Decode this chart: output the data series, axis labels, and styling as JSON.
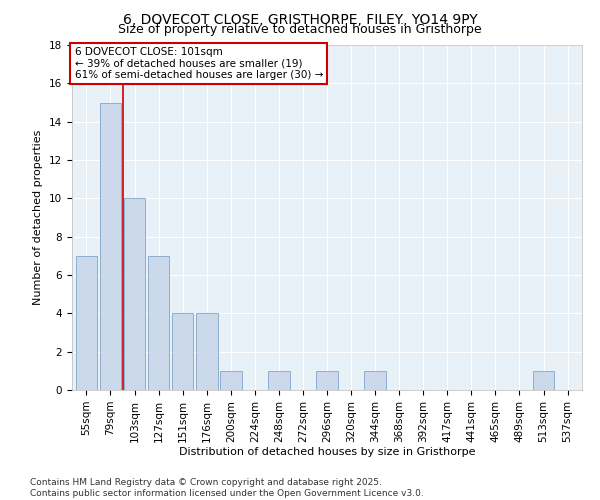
{
  "title": "6, DOVECOT CLOSE, GRISTHORPE, FILEY, YO14 9PY",
  "subtitle": "Size of property relative to detached houses in Gristhorpe",
  "xlabel": "Distribution of detached houses by size in Gristhorpe",
  "ylabel": "Number of detached properties",
  "bar_labels": [
    "55sqm",
    "79sqm",
    "103sqm",
    "127sqm",
    "151sqm",
    "176sqm",
    "200sqm",
    "224sqm",
    "248sqm",
    "272sqm",
    "296sqm",
    "320sqm",
    "344sqm",
    "368sqm",
    "392sqm",
    "417sqm",
    "441sqm",
    "465sqm",
    "489sqm",
    "513sqm",
    "537sqm"
  ],
  "bar_values": [
    7,
    15,
    10,
    7,
    4,
    4,
    1,
    0,
    1,
    0,
    1,
    0,
    1,
    0,
    0,
    0,
    0,
    0,
    0,
    1,
    0
  ],
  "bar_color": "#ccd9ea",
  "bar_edge_color": "#7098c0",
  "vline_color": "#cc0000",
  "annotation_text": "6 DOVECOT CLOSE: 101sqm\n← 39% of detached houses are smaller (19)\n61% of semi-detached houses are larger (30) →",
  "annotation_box_color": "#cc0000",
  "background_color": "#ffffff",
  "plot_bg_color": "#e8f0f8",
  "ylim": [
    0,
    18
  ],
  "yticks": [
    0,
    2,
    4,
    6,
    8,
    10,
    12,
    14,
    16,
    18
  ],
  "footer_line1": "Contains HM Land Registry data © Crown copyright and database right 2025.",
  "footer_line2": "Contains public sector information licensed under the Open Government Licence v3.0.",
  "title_fontsize": 10,
  "subtitle_fontsize": 9,
  "axis_label_fontsize": 8,
  "tick_fontsize": 7.5,
  "annotation_fontsize": 7.5,
  "footer_fontsize": 6.5
}
